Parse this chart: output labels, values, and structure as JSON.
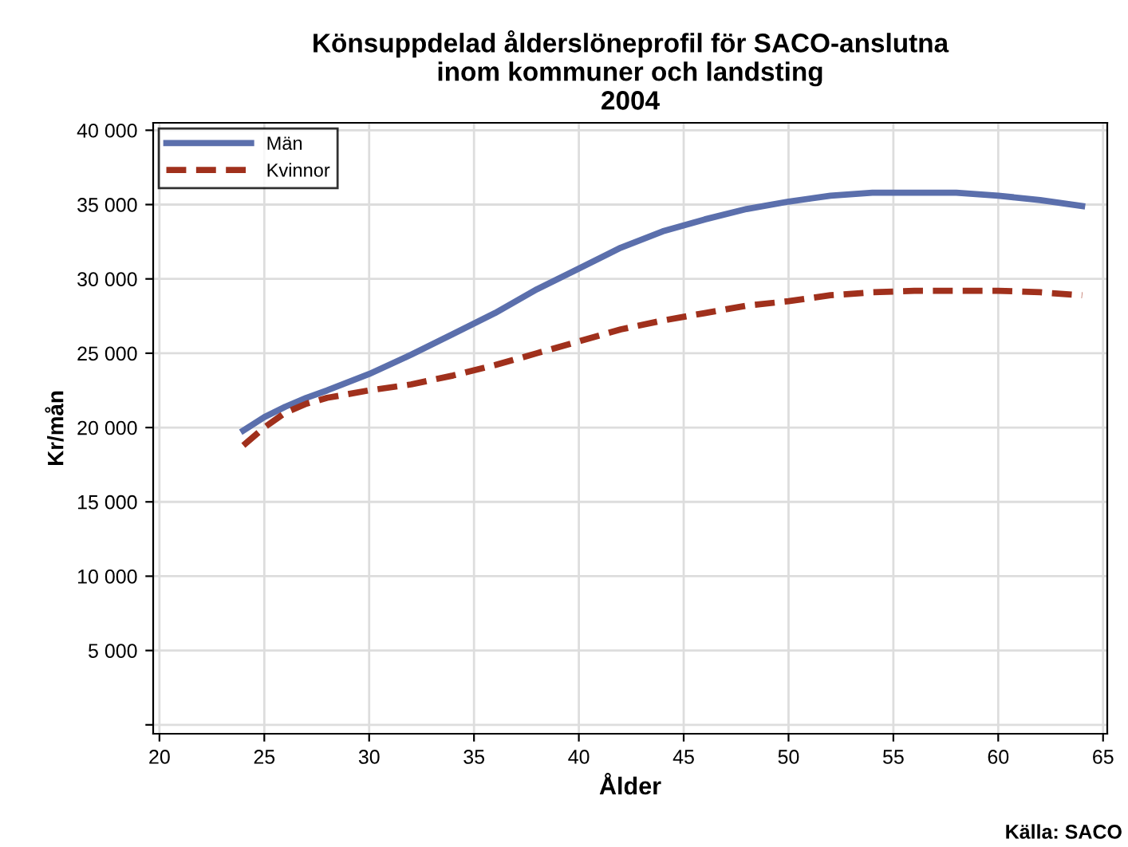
{
  "chart_data": {
    "type": "line",
    "title": "Könsuppdelad ålderslöneprofil för SACO-anslutna\ninom kommuner och landsting\n2004",
    "xlabel": "Ålder",
    "ylabel": "Kr/mån",
    "annotations": [
      "Källa: SACO"
    ],
    "x": [
      24,
      25,
      26,
      27,
      28,
      30,
      32,
      34,
      36,
      38,
      40,
      42,
      44,
      46,
      48,
      50,
      52,
      54,
      56,
      58,
      60,
      62,
      64
    ],
    "series": [
      {
        "name": "Män",
        "color": "#5b6fac",
        "line_style": "solid",
        "values": [
          19800,
          20700,
          21400,
          22000,
          22500,
          23600,
          24900,
          26300,
          27700,
          29300,
          30700,
          32100,
          33200,
          34000,
          34700,
          35200,
          35600,
          35800,
          35800,
          35800,
          35600,
          35300,
          34900
        ]
      },
      {
        "name": "Kvinnor",
        "color": "#a0301c",
        "line_style": "dashed",
        "values": [
          18800,
          20000,
          21000,
          21600,
          22000,
          22500,
          22900,
          23500,
          24200,
          25000,
          25800,
          26600,
          27200,
          27700,
          28200,
          28500,
          28900,
          29100,
          29200,
          29200,
          29200,
          29100,
          28900
        ]
      }
    ],
    "xlim": [
      19.7,
      65.2
    ],
    "xticks": [
      20,
      25,
      30,
      35,
      40,
      45,
      50,
      55,
      60,
      65
    ],
    "ylim": [
      -600,
      40500
    ],
    "yticks": [
      {
        "value": 0,
        "label": null
      },
      {
        "value": 5000,
        "label": "5 000"
      },
      {
        "value": 10000,
        "label": "10 000"
      },
      {
        "value": 15000,
        "label": "15 000"
      },
      {
        "value": 20000,
        "label": "20 000"
      },
      {
        "value": 25000,
        "label": "25 000"
      },
      {
        "value": 30000,
        "label": "30 000"
      },
      {
        "value": 35000,
        "label": "35 000"
      },
      {
        "value": 40000,
        "label": "40 000"
      }
    ],
    "grid": true,
    "legend": "top left",
    "marker": "none"
  }
}
